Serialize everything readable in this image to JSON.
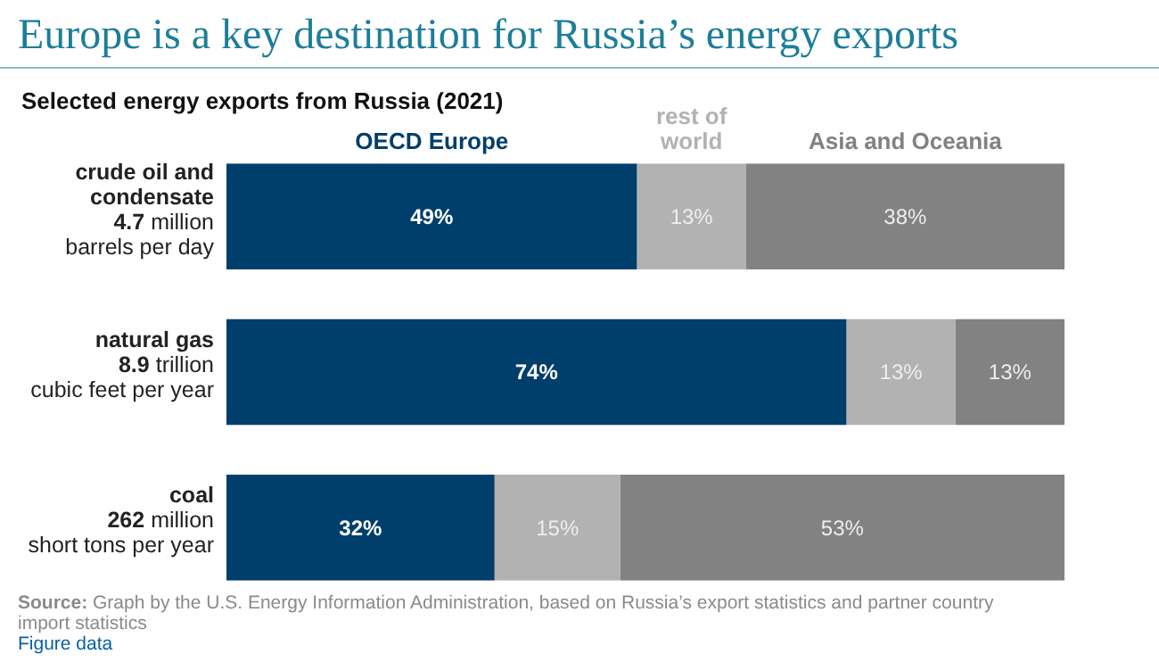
{
  "chart_data": {
    "type": "bar",
    "orientation": "horizontal",
    "stacked": true,
    "title": "Europe is a key destination for Russia’s energy exports",
    "subtitle": "Selected energy exports from Russia (2021)",
    "categories": [
      "crude oil and\ncondensate\n4.7 million\nbarrels per day",
      "natural gas\n8.9 trillion\ncubic feet per year",
      "coal\n262 million\nshort tons per year"
    ],
    "series": [
      {
        "name": "OECD Europe",
        "color": "#003e6b",
        "values": [
          49,
          74,
          32
        ],
        "value_labels": [
          "49%",
          "74%",
          "32%"
        ]
      },
      {
        "name": "rest of world",
        "color": "#b2b2b2",
        "values": [
          13,
          13,
          15
        ],
        "value_labels": [
          "13%",
          "13%",
          "15%"
        ]
      },
      {
        "name": "Asia and Oceania",
        "color": "#828282",
        "values": [
          38,
          13,
          53
        ],
        "value_labels": [
          "38%",
          "13%",
          "53%"
        ]
      }
    ],
    "legend": "top",
    "annotations": [
      "Source: Graph by the U.S. Energy Information Administration, based on Russia’s export statistics and partner country import statistics",
      "Figure data"
    ]
  }
}
